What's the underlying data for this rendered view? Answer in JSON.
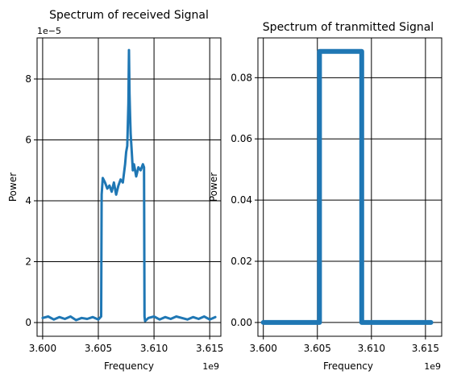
{
  "chart_data": [
    {
      "type": "line",
      "title": "Spectrum of received Signal",
      "xlabel": "Frequency",
      "ylabel": "Power",
      "x_offset_text": "1e9",
      "y_offset_text": "1e−5",
      "xlim": [
        3.5995,
        3.616
      ],
      "ylim": [
        -0.45,
        9.35
      ],
      "xticks": [
        3.6,
        3.605,
        3.61,
        3.615
      ],
      "xtick_labels": [
        "3.600",
        "3.605",
        "3.610",
        "3.615"
      ],
      "yticks": [
        0,
        2,
        4,
        6,
        8
      ],
      "ytick_labels": [
        "0",
        "2",
        "4",
        "6",
        "8"
      ],
      "grid": true,
      "line_color": "#1f77b4",
      "series": [
        {
          "name": "received",
          "x": [
            3.6,
            3.6005,
            3.601,
            3.6015,
            3.602,
            3.6025,
            3.603,
            3.6035,
            3.604,
            3.6045,
            3.605,
            3.60525,
            3.6053,
            3.6054,
            3.6056,
            3.6058,
            3.606,
            3.6062,
            3.6064,
            3.6066,
            3.6068,
            3.607,
            3.6072,
            3.6074,
            3.6075,
            3.6076,
            3.6077,
            3.60775,
            3.6078,
            3.60785,
            3.6079,
            3.608,
            3.6081,
            3.6082,
            3.6084,
            3.6086,
            3.6088,
            3.609,
            3.6091,
            3.60915,
            3.6092,
            3.6095,
            3.61,
            3.6105,
            3.611,
            3.6115,
            3.612,
            3.6125,
            3.613,
            3.6135,
            3.614,
            3.6145,
            3.615,
            3.6155
          ],
          "y": [
            0.15,
            0.2,
            0.1,
            0.18,
            0.12,
            0.2,
            0.08,
            0.15,
            0.12,
            0.18,
            0.1,
            0.2,
            4.2,
            4.75,
            4.6,
            4.4,
            4.5,
            4.3,
            4.6,
            4.2,
            4.5,
            4.7,
            4.6,
            5.2,
            5.6,
            5.8,
            7.2,
            8.95,
            7.5,
            6.8,
            6.2,
            5.6,
            5.0,
            5.2,
            4.8,
            5.1,
            5.0,
            5.2,
            5.1,
            0.2,
            0.05,
            0.15,
            0.2,
            0.1,
            0.18,
            0.12,
            0.2,
            0.15,
            0.1,
            0.18,
            0.12,
            0.2,
            0.1,
            0.18
          ]
        }
      ]
    },
    {
      "type": "line",
      "title": "Spectrum of tranmitted Signal",
      "xlabel": "Frequency",
      "ylabel": "Power",
      "x_offset_text": "1e9",
      "xlim": [
        3.5995,
        3.6165
      ],
      "ylim": [
        -0.0045,
        0.093
      ],
      "xticks": [
        3.6,
        3.605,
        3.61,
        3.615
      ],
      "xtick_labels": [
        "3.600",
        "3.605",
        "3.610",
        "3.615"
      ],
      "yticks": [
        0.0,
        0.02,
        0.04,
        0.06,
        0.08
      ],
      "ytick_labels": [
        "0.00",
        "0.02",
        "0.04",
        "0.06",
        "0.08"
      ],
      "grid": true,
      "line_color": "#1f77b4",
      "series": [
        {
          "name": "transmitted",
          "x": [
            3.6,
            3.6052,
            3.6052,
            3.6091,
            3.6091,
            3.6155
          ],
          "y": [
            0.0,
            0.0,
            0.0886,
            0.0886,
            0.0,
            0.0
          ]
        }
      ]
    }
  ]
}
